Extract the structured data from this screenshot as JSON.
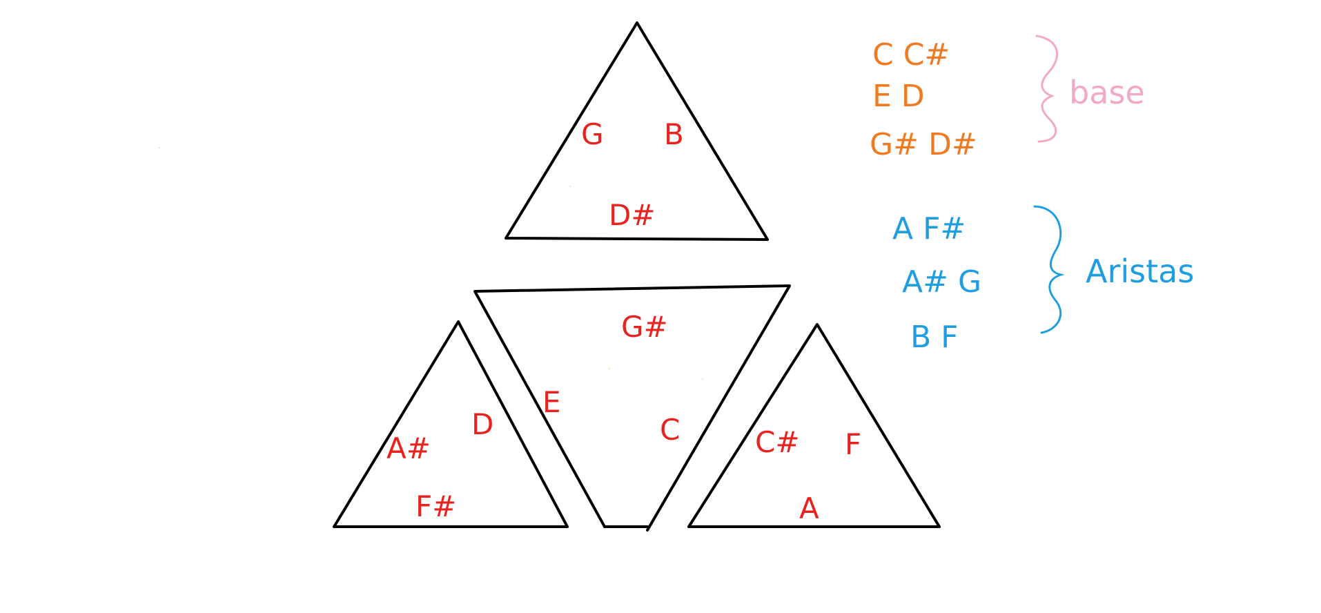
{
  "triangle_top": {
    "labels": [
      "G",
      "B",
      "D#"
    ]
  },
  "triangle_center": {
    "labels": [
      "G#",
      "E",
      "C"
    ]
  },
  "triangle_left": {
    "labels": [
      "A#",
      "D",
      "F#"
    ]
  },
  "triangle_right": {
    "labels": [
      "C#",
      "F",
      "A"
    ]
  },
  "legend": {
    "base": {
      "title": "base",
      "lines": [
        "C C#",
        "E D",
        "G# D#"
      ]
    },
    "aristas": {
      "title": "Aristas",
      "lines": [
        "A F#",
        "A# G",
        "B F"
      ]
    }
  },
  "colors": {
    "shape": "#000000",
    "notes": "#e8231f",
    "base": "#f07a22",
    "base_brace": "#f1a9c7",
    "aristas": "#1e9ee0"
  }
}
